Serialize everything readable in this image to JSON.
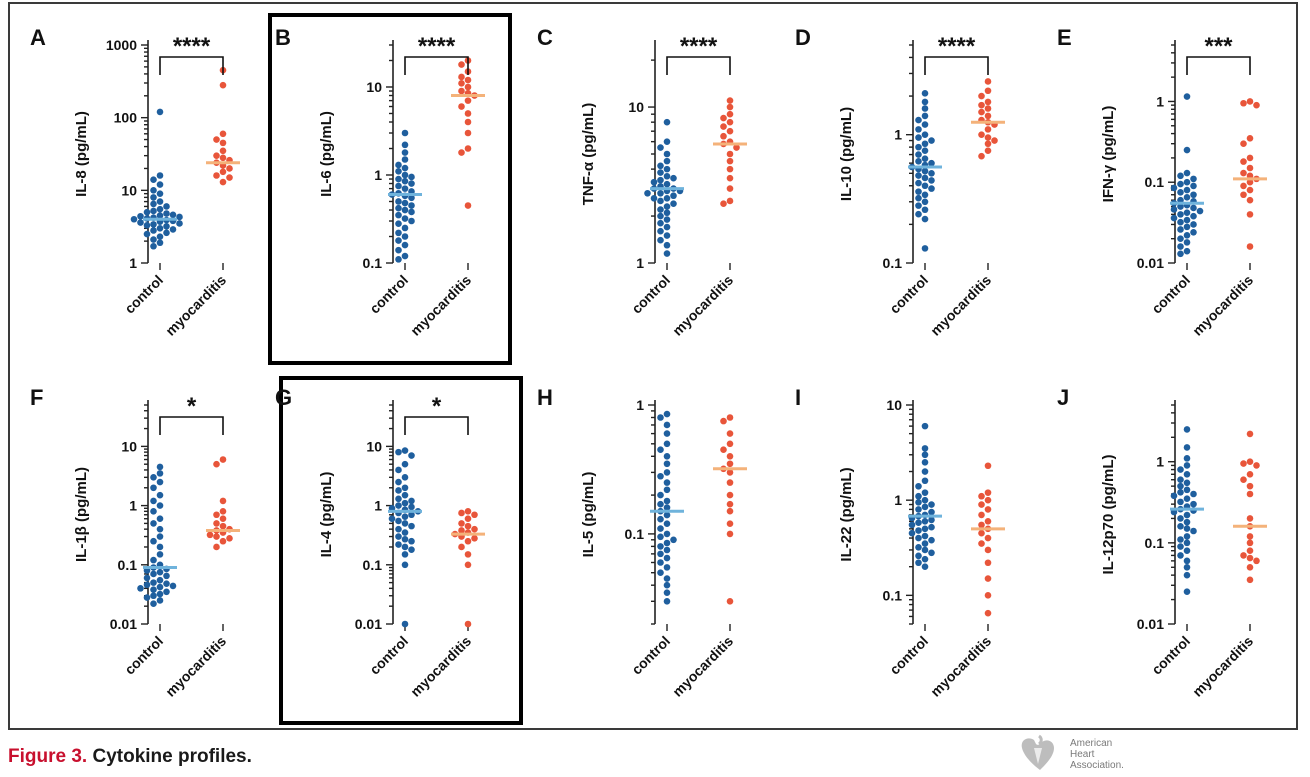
{
  "caption": {
    "label": "Figure 3.",
    "text": "Cytokine profiles."
  },
  "logo": {
    "lines": [
      "American",
      "Heart",
      "Association."
    ]
  },
  "colors": {
    "control": "#1f5f9e",
    "myocarditis": "#e8553a",
    "control_median": "#6fb3dc",
    "myocarditis_median": "#f4b27a"
  },
  "chart_data": [
    {
      "panel": "A",
      "type": "scatter",
      "scale": "log",
      "ylabel": "IL-8 (pg/mL)",
      "ylim": [
        1,
        1000
      ],
      "yticks": [
        "1",
        "10",
        "100",
        "1000"
      ],
      "categories": [
        "control",
        "myocarditis"
      ],
      "significance": "****",
      "highlight": false,
      "series": [
        {
          "name": "control",
          "median": 4.0,
          "values": [
            120,
            16,
            14,
            12,
            10,
            9,
            8,
            7,
            6.5,
            6,
            5.5,
            5.2,
            5,
            4.8,
            4.6,
            4.5,
            4.4,
            4.3,
            4.2,
            4.1,
            4.0,
            3.9,
            3.8,
            3.7,
            3.6,
            3.5,
            3.4,
            3.3,
            3.2,
            3.0,
            2.9,
            2.8,
            2.6,
            2.5,
            2.3,
            2.1,
            1.9,
            1.7
          ]
        },
        {
          "name": "myocarditis",
          "median": 24,
          "values": [
            450,
            280,
            60,
            50,
            45,
            35,
            30,
            28,
            26,
            24,
            22,
            20,
            18,
            16,
            15,
            13
          ]
        }
      ]
    },
    {
      "panel": "B",
      "type": "scatter",
      "scale": "log",
      "ylabel": "IL-6 (pg/mL)",
      "ylim": [
        0.1,
        30
      ],
      "yticks": [
        "0.1",
        "1",
        "10"
      ],
      "categories": [
        "control",
        "myocarditis"
      ],
      "significance": "****",
      "highlight": true,
      "series": [
        {
          "name": "control",
          "median": 0.6,
          "values": [
            3.0,
            2.2,
            1.8,
            1.5,
            1.3,
            1.2,
            1.1,
            1.0,
            0.95,
            0.9,
            0.85,
            0.8,
            0.75,
            0.7,
            0.65,
            0.62,
            0.6,
            0.58,
            0.55,
            0.5,
            0.48,
            0.45,
            0.42,
            0.4,
            0.38,
            0.35,
            0.32,
            0.3,
            0.28,
            0.25,
            0.22,
            0.2,
            0.18,
            0.16,
            0.14,
            0.12,
            0.11
          ]
        },
        {
          "name": "myocarditis",
          "median": 8,
          "values": [
            20,
            18,
            15,
            13,
            12,
            11,
            10,
            9,
            8.5,
            8,
            7,
            6,
            5,
            4,
            3,
            2,
            1.8,
            0.45
          ]
        }
      ]
    },
    {
      "panel": "C",
      "type": "scatter",
      "scale": "log",
      "ylabel": "TNF-α (pg/mL)",
      "ylim": [
        1,
        25
      ],
      "yticks": [
        "1",
        "10"
      ],
      "categories": [
        "control",
        "myocarditis"
      ],
      "significance": "****",
      "highlight": false,
      "series": [
        {
          "name": "control",
          "median": 3.0,
          "values": [
            8.0,
            6.0,
            5.5,
            5.0,
            4.5,
            4.2,
            4.0,
            3.8,
            3.6,
            3.5,
            3.4,
            3.3,
            3.2,
            3.1,
            3.0,
            3.0,
            2.9,
            2.9,
            2.8,
            2.8,
            2.7,
            2.6,
            2.6,
            2.5,
            2.4,
            2.3,
            2.2,
            2.1,
            2.0,
            1.9,
            1.8,
            1.7,
            1.6,
            1.5,
            1.4,
            1.3,
            1.15
          ]
        },
        {
          "name": "myocarditis",
          "median": 5.8,
          "values": [
            11,
            10,
            9,
            8.5,
            8,
            7.5,
            7,
            6.5,
            6,
            5.8,
            5.5,
            5,
            4.5,
            4,
            3.5,
            3,
            2.5,
            2.4
          ]
        }
      ]
    },
    {
      "panel": "D",
      "type": "scatter",
      "scale": "log",
      "ylabel": "IL-10 (pg/mL)",
      "ylim": [
        0.1,
        5
      ],
      "yticks": [
        "0.1",
        "1"
      ],
      "categories": [
        "control",
        "myocarditis"
      ],
      "significance": "****",
      "highlight": false,
      "series": [
        {
          "name": "control",
          "median": 0.56,
          "values": [
            2.1,
            1.8,
            1.6,
            1.4,
            1.3,
            1.2,
            1.1,
            1.0,
            0.95,
            0.9,
            0.85,
            0.8,
            0.75,
            0.7,
            0.65,
            0.62,
            0.6,
            0.58,
            0.56,
            0.54,
            0.52,
            0.5,
            0.48,
            0.46,
            0.44,
            0.42,
            0.4,
            0.38,
            0.36,
            0.34,
            0.32,
            0.3,
            0.28,
            0.26,
            0.24,
            0.22,
            0.13
          ]
        },
        {
          "name": "myocarditis",
          "median": 1.25,
          "values": [
            2.6,
            2.2,
            2.0,
            1.8,
            1.7,
            1.6,
            1.5,
            1.4,
            1.3,
            1.25,
            1.2,
            1.1,
            1.0,
            0.95,
            0.9,
            0.85,
            0.75,
            0.68
          ]
        }
      ]
    },
    {
      "panel": "E",
      "type": "scatter",
      "scale": "log",
      "ylabel": "IFN-γ (pg/mL)",
      "ylim": [
        0.01,
        5
      ],
      "yticks": [
        "0.01",
        "0.1",
        "1"
      ],
      "categories": [
        "control",
        "myocarditis"
      ],
      "significance": "***",
      "highlight": false,
      "series": [
        {
          "name": "control",
          "median": 0.055,
          "values": [
            1.15,
            0.25,
            0.13,
            0.12,
            0.11,
            0.1,
            0.095,
            0.09,
            0.085,
            0.08,
            0.075,
            0.07,
            0.065,
            0.06,
            0.058,
            0.055,
            0.052,
            0.05,
            0.048,
            0.046,
            0.044,
            0.042,
            0.04,
            0.038,
            0.036,
            0.034,
            0.032,
            0.03,
            0.028,
            0.026,
            0.024,
            0.022,
            0.02,
            0.018,
            0.016,
            0.014,
            0.013
          ]
        },
        {
          "name": "myocarditis",
          "median": 0.11,
          "values": [
            1.0,
            0.95,
            0.9,
            0.35,
            0.3,
            0.2,
            0.18,
            0.15,
            0.13,
            0.12,
            0.11,
            0.1,
            0.09,
            0.08,
            0.07,
            0.06,
            0.04,
            0.016
          ]
        }
      ]
    },
    {
      "panel": "F",
      "type": "scatter",
      "scale": "log",
      "ylabel": "IL-1β (pg/mL)",
      "ylim": [
        0.01,
        50
      ],
      "yticks": [
        "0.01",
        "0.1",
        "1",
        "10"
      ],
      "categories": [
        "control",
        "myocarditis"
      ],
      "significance": "*",
      "highlight": false,
      "series": [
        {
          "name": "control",
          "median": 0.09,
          "values": [
            4.5,
            3.5,
            3.0,
            2.5,
            2.0,
            1.5,
            1.2,
            1.0,
            0.8,
            0.6,
            0.5,
            0.4,
            0.3,
            0.25,
            0.2,
            0.15,
            0.12,
            0.1,
            0.09,
            0.085,
            0.08,
            0.075,
            0.07,
            0.065,
            0.06,
            0.055,
            0.05,
            0.048,
            0.046,
            0.044,
            0.042,
            0.04,
            0.038,
            0.035,
            0.032,
            0.03,
            0.028,
            0.025,
            0.022
          ]
        },
        {
          "name": "myocarditis",
          "median": 0.38,
          "values": [
            6.0,
            5.0,
            1.2,
            0.8,
            0.7,
            0.6,
            0.5,
            0.45,
            0.4,
            0.38,
            0.35,
            0.32,
            0.3,
            0.28,
            0.25,
            0.2
          ]
        }
      ]
    },
    {
      "panel": "G",
      "type": "scatter",
      "scale": "log",
      "ylabel": "IL-4 (pg/mL)",
      "ylim": [
        0.01,
        50
      ],
      "yticks": [
        "0.01",
        "0.1",
        "1",
        "10"
      ],
      "categories": [
        "control",
        "myocarditis"
      ],
      "significance": "*",
      "highlight": true,
      "series": [
        {
          "name": "control",
          "median": 0.8,
          "values": [
            8.5,
            8.0,
            7.0,
            5.0,
            4.0,
            3.0,
            2.5,
            2.0,
            1.8,
            1.5,
            1.3,
            1.2,
            1.1,
            1.0,
            0.95,
            0.9,
            0.85,
            0.8,
            0.75,
            0.7,
            0.65,
            0.6,
            0.55,
            0.5,
            0.45,
            0.4,
            0.35,
            0.3,
            0.27,
            0.25,
            0.22,
            0.2,
            0.18,
            0.15,
            0.1,
            0.01
          ]
        },
        {
          "name": "myocarditis",
          "median": 0.33,
          "values": [
            0.8,
            0.75,
            0.7,
            0.6,
            0.5,
            0.45,
            0.4,
            0.38,
            0.35,
            0.33,
            0.3,
            0.28,
            0.25,
            0.2,
            0.15,
            0.1,
            0.01
          ]
        }
      ]
    },
    {
      "panel": "H",
      "type": "scatter",
      "scale": "log",
      "ylabel": "IL-5 (pg/mL)",
      "ylim": [
        0.02,
        1
      ],
      "yticks": [
        "0.1",
        "1"
      ],
      "categories": [
        "control",
        "myocarditis"
      ],
      "significance": "",
      "highlight": false,
      "series": [
        {
          "name": "control",
          "median": 0.15,
          "values": [
            0.85,
            0.8,
            0.7,
            0.6,
            0.5,
            0.45,
            0.4,
            0.35,
            0.3,
            0.28,
            0.25,
            0.22,
            0.2,
            0.18,
            0.17,
            0.16,
            0.15,
            0.14,
            0.13,
            0.12,
            0.11,
            0.1,
            0.095,
            0.09,
            0.085,
            0.08,
            0.075,
            0.07,
            0.065,
            0.06,
            0.055,
            0.05,
            0.045,
            0.04,
            0.035,
            0.03
          ]
        },
        {
          "name": "myocarditis",
          "median": 0.32,
          "values": [
            0.8,
            0.75,
            0.6,
            0.5,
            0.45,
            0.4,
            0.35,
            0.32,
            0.3,
            0.25,
            0.2,
            0.17,
            0.15,
            0.12,
            0.1,
            0.03
          ]
        }
      ]
    },
    {
      "panel": "I",
      "type": "scatter",
      "scale": "log",
      "ylabel": "IL-22 (pg/mL)",
      "ylim": [
        0.05,
        10
      ],
      "yticks": [
        "0.1",
        "1",
        "10"
      ],
      "categories": [
        "control",
        "myocarditis"
      ],
      "significance": "",
      "highlight": false,
      "series": [
        {
          "name": "control",
          "median": 0.68,
          "values": [
            6.0,
            3.5,
            3.0,
            2.5,
            2.0,
            1.6,
            1.4,
            1.2,
            1.1,
            1.0,
            0.95,
            0.9,
            0.85,
            0.8,
            0.75,
            0.7,
            0.68,
            0.65,
            0.62,
            0.6,
            0.58,
            0.55,
            0.52,
            0.5,
            0.48,
            0.45,
            0.42,
            0.4,
            0.38,
            0.35,
            0.32,
            0.3,
            0.28,
            0.26,
            0.24,
            0.22,
            0.2
          ]
        },
        {
          "name": "myocarditis",
          "median": 0.5,
          "values": [
            2.3,
            1.2,
            1.1,
            1.0,
            0.9,
            0.8,
            0.7,
            0.6,
            0.55,
            0.5,
            0.45,
            0.4,
            0.35,
            0.3,
            0.22,
            0.15,
            0.1,
            0.065
          ]
        }
      ]
    },
    {
      "panel": "J",
      "type": "scatter",
      "scale": "log",
      "ylabel": "IL-12p70 (pg/mL)",
      "ylim": [
        0.01,
        5
      ],
      "yticks": [
        "0.01",
        "0.1",
        "1"
      ],
      "categories": [
        "control",
        "myocarditis"
      ],
      "significance": "",
      "highlight": false,
      "series": [
        {
          "name": "control",
          "median": 0.26,
          "values": [
            2.5,
            1.5,
            1.1,
            0.9,
            0.8,
            0.7,
            0.6,
            0.55,
            0.5,
            0.45,
            0.42,
            0.4,
            0.38,
            0.35,
            0.32,
            0.3,
            0.28,
            0.26,
            0.25,
            0.24,
            0.22,
            0.2,
            0.18,
            0.16,
            0.15,
            0.14,
            0.12,
            0.11,
            0.1,
            0.09,
            0.08,
            0.07,
            0.06,
            0.05,
            0.04,
            0.025
          ]
        },
        {
          "name": "myocarditis",
          "median": 0.16,
          "values": [
            2.2,
            1.0,
            0.95,
            0.9,
            0.7,
            0.6,
            0.5,
            0.4,
            0.2,
            0.16,
            0.12,
            0.1,
            0.08,
            0.07,
            0.065,
            0.06,
            0.05,
            0.035
          ]
        }
      ]
    }
  ]
}
